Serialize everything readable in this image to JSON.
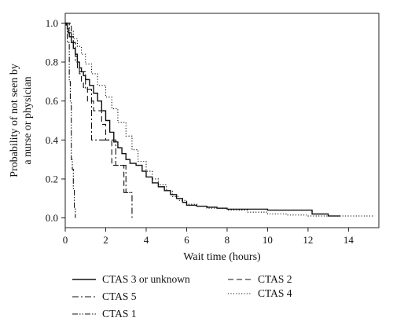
{
  "chart_data": {
    "type": "line",
    "title": "",
    "xlabel": "Wait time (hours)",
    "ylabel_lines": [
      "Probability of not seen by",
      "a nurse or physician"
    ],
    "xlim": [
      0,
      15.5
    ],
    "ylim": [
      -0.05,
      1.05
    ],
    "x_ticks": [
      0,
      2,
      4,
      6,
      8,
      10,
      12,
      14
    ],
    "y_ticks": [
      0.0,
      0.2,
      0.4,
      0.6,
      0.8,
      1.0
    ],
    "x_tick_labels": [
      "0",
      "2",
      "4",
      "6",
      "8",
      "10",
      "12",
      "14"
    ],
    "y_tick_labels": [
      "0.0",
      "0.2",
      "0.4",
      "0.6",
      "0.8",
      "1.0"
    ],
    "grid": false,
    "legend_position": "below",
    "series": [
      {
        "name": "CTAS 3 or unknown",
        "style": "solid",
        "x": [
          0,
          0.05,
          0.1,
          0.15,
          0.2,
          0.3,
          0.4,
          0.5,
          0.6,
          0.7,
          0.8,
          0.9,
          1.0,
          1.2,
          1.4,
          1.6,
          1.8,
          2.0,
          2.2,
          2.4,
          2.6,
          2.8,
          3.0,
          3.2,
          3.5,
          3.8,
          4.0,
          4.3,
          4.6,
          4.9,
          5.2,
          5.5,
          5.8,
          6.0,
          6.5,
          7.0,
          7.5,
          8.0,
          9.0,
          10.0,
          11.0,
          12.0,
          12.2,
          13.0,
          13.6
        ],
        "y": [
          1.0,
          0.99,
          0.97,
          0.95,
          0.93,
          0.9,
          0.87,
          0.84,
          0.8,
          0.77,
          0.75,
          0.73,
          0.71,
          0.68,
          0.64,
          0.6,
          0.55,
          0.5,
          0.44,
          0.39,
          0.36,
          0.33,
          0.3,
          0.28,
          0.27,
          0.24,
          0.21,
          0.18,
          0.16,
          0.14,
          0.12,
          0.1,
          0.08,
          0.065,
          0.06,
          0.055,
          0.05,
          0.045,
          0.045,
          0.04,
          0.04,
          0.04,
          0.02,
          0.01,
          0.01
        ]
      },
      {
        "name": "CTAS 2",
        "style": "dashed",
        "x": [
          0,
          0.3,
          0.4,
          0.5,
          0.6,
          0.7,
          0.8,
          0.9,
          1.1,
          1.4,
          1.8,
          2.0,
          2.3,
          2.6,
          2.9,
          3.2
        ],
        "y": [
          1.0,
          0.93,
          0.9,
          0.83,
          0.77,
          0.74,
          0.7,
          0.67,
          0.6,
          0.55,
          0.48,
          0.4,
          0.27,
          0.27,
          0.13,
          0.13
        ]
      },
      {
        "name": "CTAS 5",
        "style": "dashdot",
        "x": [
          0,
          0.2,
          0.3,
          0.4,
          0.5,
          0.7,
          0.9,
          1.0,
          1.1,
          1.3,
          1.5,
          2.0,
          2.5,
          2.8,
          3.0,
          3.2,
          3.3
        ],
        "y": [
          1.0,
          0.95,
          0.93,
          0.9,
          0.8,
          0.75,
          0.75,
          0.66,
          0.66,
          0.4,
          0.4,
          0.4,
          0.27,
          0.27,
          0.13,
          0.13,
          0.0
        ]
      },
      {
        "name": "CTAS 4",
        "style": "dotted",
        "x": [
          0,
          0.2,
          0.4,
          0.6,
          0.8,
          1.0,
          1.3,
          1.6,
          2.0,
          2.3,
          2.6,
          3.0,
          3.3,
          3.6,
          4.0,
          4.3,
          4.6,
          5.0,
          5.3,
          5.6,
          6.0,
          6.5,
          7.0,
          8.0,
          9.0,
          10.0,
          11.0,
          12.0,
          13.0,
          14.0,
          15.2
        ],
        "y": [
          1.0,
          0.96,
          0.92,
          0.88,
          0.84,
          0.79,
          0.74,
          0.68,
          0.62,
          0.56,
          0.49,
          0.42,
          0.35,
          0.29,
          0.24,
          0.2,
          0.17,
          0.14,
          0.11,
          0.09,
          0.07,
          0.06,
          0.05,
          0.04,
          0.03,
          0.02,
          0.015,
          0.01,
          0.01,
          0.01,
          0.01
        ]
      },
      {
        "name": "CTAS 1",
        "style": "dashdotdot",
        "x": [
          0,
          0.1,
          0.2,
          0.25,
          0.3,
          0.35,
          0.4,
          0.45,
          0.5
        ],
        "y": [
          1.0,
          0.9,
          0.7,
          0.6,
          0.3,
          0.25,
          0.15,
          0.05,
          0.0
        ]
      }
    ]
  }
}
